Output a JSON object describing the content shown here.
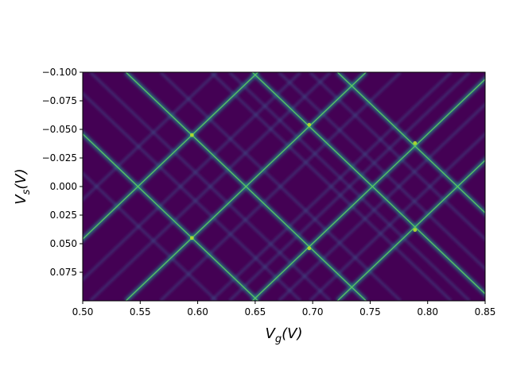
{
  "chart_data": {
    "type": "heatmap",
    "title": "",
    "xlabel_main": "V",
    "xlabel_sub": "g",
    "xlabel_unit": "(V)",
    "ylabel_main": "V",
    "ylabel_sub": "s",
    "ylabel_unit": "(V)",
    "xlim": [
      0.5,
      0.85
    ],
    "ylim_top": -0.1,
    "ylim_bottom": 0.1,
    "x_ticks": [
      0.5,
      0.55,
      0.6,
      0.65,
      0.7,
      0.75,
      0.8,
      0.85
    ],
    "x_tick_labels": [
      "0.50",
      "0.55",
      "0.60",
      "0.65",
      "0.70",
      "0.75",
      "0.80",
      "0.85"
    ],
    "y_ticks": [
      -0.1,
      -0.075,
      -0.05,
      -0.025,
      0.0,
      0.025,
      0.05,
      0.075
    ],
    "y_tick_labels": [
      "−0.100",
      "−0.075",
      "−0.050",
      "−0.025",
      "0.000",
      "0.025",
      "0.050",
      "0.075"
    ],
    "colormap": "viridis",
    "background_color": "#440154",
    "degeneracy_points_vg": [
      0.548,
      0.642,
      0.752,
      0.826
    ],
    "primary_diamonds": [
      {
        "vg_left": 0.548,
        "vg_right": 0.642,
        "vs_half_height": 0.045
      },
      {
        "vg_left": 0.642,
        "vg_right": 0.752,
        "vs_half_height": 0.054
      },
      {
        "vg_left": 0.752,
        "vg_right": 0.826,
        "vs_half_height": 0.038
      }
    ],
    "secondary_line_intercepts_vg": [
      0.512,
      0.585,
      0.611,
      0.672,
      0.716,
      0.732,
      0.775,
      0.802
    ]
  }
}
